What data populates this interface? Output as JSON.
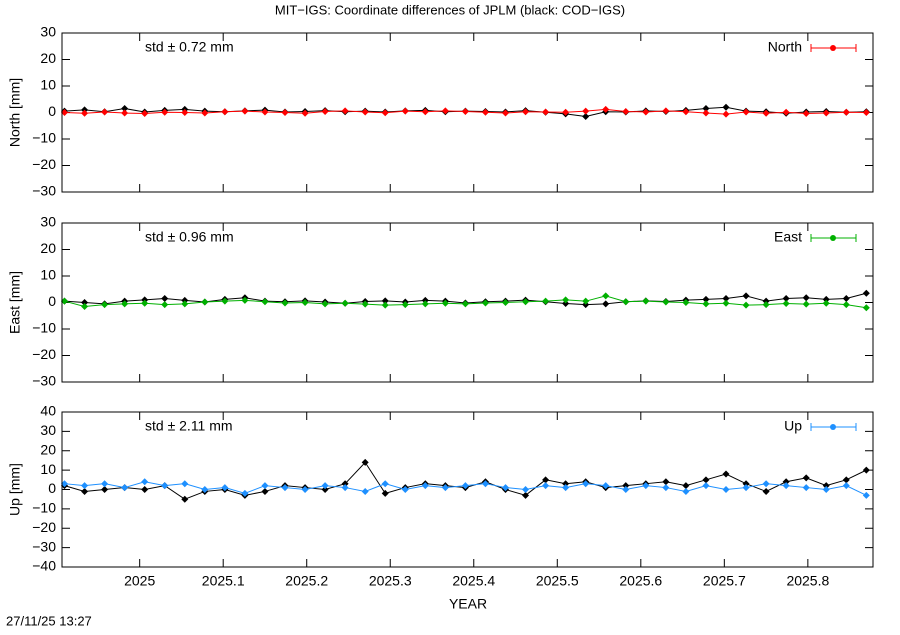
{
  "title": "MIT−IGS: Coordinate differences of JPLM (black: COD−IGS)",
  "timestamp": "27/11/25 13:27",
  "x_label": "YEAR",
  "chart_data": [
    {
      "type": "line",
      "y_label": "North [mm]",
      "annotation": "std ± 0.72 mm",
      "annotation_color": "#ff0000",
      "xlim": [
        2024.907,
        2025.878
      ],
      "xticks": [
        2025,
        2025.1,
        2025.2,
        2025.3,
        2025.4,
        2025.5,
        2025.6,
        2025.7,
        2025.8
      ],
      "ylim": [
        -30,
        30
      ],
      "yticks": [
        {
          "value": -30,
          "label": "−30"
        },
        {
          "value": -20,
          "label": "−20"
        },
        {
          "value": -10,
          "label": "−10"
        },
        0,
        10,
        20,
        30
      ],
      "x": [
        2024.91,
        2024.934,
        2024.958,
        2024.982,
        2025.006,
        2025.03,
        2025.054,
        2025.078,
        2025.102,
        2025.126,
        2025.15,
        2025.174,
        2025.198,
        2025.222,
        2025.246,
        2025.27,
        2025.294,
        2025.318,
        2025.342,
        2025.366,
        2025.39,
        2025.414,
        2025.438,
        2025.462,
        2025.486,
        2025.51,
        2025.534,
        2025.558,
        2025.582,
        2025.606,
        2025.63,
        2025.654,
        2025.678,
        2025.702,
        2025.726,
        2025.75,
        2025.774,
        2025.798,
        2025.822,
        2025.846,
        2025.87
      ],
      "series": [
        {
          "color": "#000000",
          "values": [
            0.5,
            1,
            0.3,
            1.5,
            0.2,
            0.8,
            1.2,
            0.5,
            0.3,
            0.6,
            0.9,
            0.2,
            0.4,
            0.7,
            0.3,
            0.5,
            0.2,
            0.6,
            0.8,
            0.3,
            0.5,
            0.4,
            0.2,
            0.7,
            0.1,
            -0.5,
            -1.5,
            0.3,
            0.2,
            0.6,
            0.4,
            0.8,
            1.5,
            2,
            0.5,
            0.3,
            -0.3,
            0.2,
            0.4,
            0.1,
            0.3
          ]
        },
        {
          "name": "North",
          "color": "#ff0000",
          "values": [
            0,
            -0.3,
            0.2,
            -0.2,
            -0.4,
            0.1,
            0,
            -0.2,
            0.3,
            0.5,
            0.2,
            0,
            -0.3,
            0.4,
            0.6,
            0.2,
            -0.1,
            0.5,
            0.3,
            0.6,
            0.4,
            0.1,
            -0.2,
            0.3,
            0.2,
            0.1,
            0.5,
            1.2,
            0.4,
            0.2,
            0.6,
            0.3,
            -0.2,
            -0.6,
            0.2,
            -0.3,
            0.1,
            -0.4,
            -0.2,
            0.1,
            0
          ]
        }
      ]
    },
    {
      "type": "line",
      "y_label": "East [mm]",
      "annotation": "std ± 0.96 mm",
      "annotation_color": "#00b000",
      "xlim": [
        2024.907,
        2025.878
      ],
      "xticks": [
        2025,
        2025.1,
        2025.2,
        2025.3,
        2025.4,
        2025.5,
        2025.6,
        2025.7,
        2025.8
      ],
      "ylim": [
        -30,
        30
      ],
      "yticks": [
        {
          "value": -30,
          "label": "−30"
        },
        {
          "value": -20,
          "label": "−20"
        },
        {
          "value": -10,
          "label": "−10"
        },
        0,
        10,
        20,
        30
      ],
      "x": [
        2024.91,
        2024.934,
        2024.958,
        2024.982,
        2025.006,
        2025.03,
        2025.054,
        2025.078,
        2025.102,
        2025.126,
        2025.15,
        2025.174,
        2025.198,
        2025.222,
        2025.246,
        2025.27,
        2025.294,
        2025.318,
        2025.342,
        2025.366,
        2025.39,
        2025.414,
        2025.438,
        2025.462,
        2025.486,
        2025.51,
        2025.534,
        2025.558,
        2025.582,
        2025.606,
        2025.63,
        2025.654,
        2025.678,
        2025.702,
        2025.726,
        2025.75,
        2025.774,
        2025.798,
        2025.822,
        2025.846,
        2025.87
      ],
      "series": [
        {
          "color": "#000000",
          "values": [
            0.5,
            0,
            -0.5,
            0.5,
            1,
            1.5,
            0.8,
            0.2,
            1.2,
            1.8,
            0.5,
            0.3,
            0.6,
            0.2,
            -0.3,
            0.4,
            0.6,
            0.2,
            0.8,
            0.5,
            -0.2,
            0.3,
            0.5,
            0.9,
            0.3,
            -0.4,
            -0.8,
            -0.5,
            0.3,
            0.6,
            0.4,
            0.9,
            1.2,
            1.5,
            2.5,
            0.5,
            1.5,
            1.8,
            1.2,
            1.5,
            3.5
          ]
        },
        {
          "name": "East",
          "color": "#00b000",
          "values": [
            0.5,
            -1.5,
            -0.8,
            -0.5,
            -0.3,
            -0.8,
            -0.5,
            0.2,
            0.5,
            0.8,
            0.3,
            -0.2,
            0,
            -0.5,
            -0.3,
            -0.6,
            -1,
            -0.8,
            -0.5,
            -0.3,
            -0.5,
            -0.2,
            0,
            0.3,
            0.5,
            1,
            0.5,
            2.5,
            0.3,
            0.5,
            0.2,
            0,
            -0.5,
            -0.3,
            -1,
            -0.8,
            -0.4,
            -0.6,
            -0.3,
            -0.8,
            -2
          ]
        }
      ]
    },
    {
      "type": "line",
      "y_label": "Up [mm]",
      "annotation": "std ± 2.11 mm",
      "annotation_color": "#1e90ff",
      "show_x_labels": true,
      "xlim": [
        2024.907,
        2025.878
      ],
      "xticks": [
        2025,
        2025.1,
        2025.2,
        2025.3,
        2025.4,
        2025.5,
        2025.6,
        2025.7,
        2025.8
      ],
      "ylim": [
        -40,
        40
      ],
      "yticks": [
        {
          "value": -40,
          "label": "−40"
        },
        {
          "value": -30,
          "label": "−30"
        },
        {
          "value": -20,
          "label": "−20"
        },
        {
          "value": -10,
          "label": "−10"
        },
        0,
        10,
        20,
        30,
        40
      ],
      "x": [
        2024.91,
        2024.934,
        2024.958,
        2024.982,
        2025.006,
        2025.03,
        2025.054,
        2025.078,
        2025.102,
        2025.126,
        2025.15,
        2025.174,
        2025.198,
        2025.222,
        2025.246,
        2025.27,
        2025.294,
        2025.318,
        2025.342,
        2025.366,
        2025.39,
        2025.414,
        2025.438,
        2025.462,
        2025.486,
        2025.51,
        2025.534,
        2025.558,
        2025.582,
        2025.606,
        2025.63,
        2025.654,
        2025.678,
        2025.702,
        2025.726,
        2025.75,
        2025.774,
        2025.798,
        2025.822,
        2025.846,
        2025.87
      ],
      "series": [
        {
          "color": "#000000",
          "values": [
            2,
            -1,
            0,
            1,
            0,
            2,
            -5,
            -1,
            0,
            -3,
            -1,
            2,
            1,
            0,
            3,
            14,
            -2,
            1,
            3,
            2,
            1,
            4,
            0,
            -3,
            5,
            3,
            4,
            1,
            2,
            3,
            4,
            2,
            5,
            8,
            3,
            -1,
            4,
            6,
            2,
            5,
            10
          ]
        },
        {
          "name": "Up",
          "color": "#1e90ff",
          "values": [
            3,
            2,
            3,
            1,
            4,
            2,
            3,
            0,
            1,
            -2,
            2,
            1,
            0,
            2,
            1,
            -1,
            3,
            0,
            2,
            1,
            2,
            3,
            1,
            0,
            2,
            1,
            3,
            2,
            0,
            2,
            1,
            -1,
            2,
            0,
            1,
            3,
            2,
            1,
            0,
            2,
            -3
          ]
        }
      ]
    }
  ]
}
